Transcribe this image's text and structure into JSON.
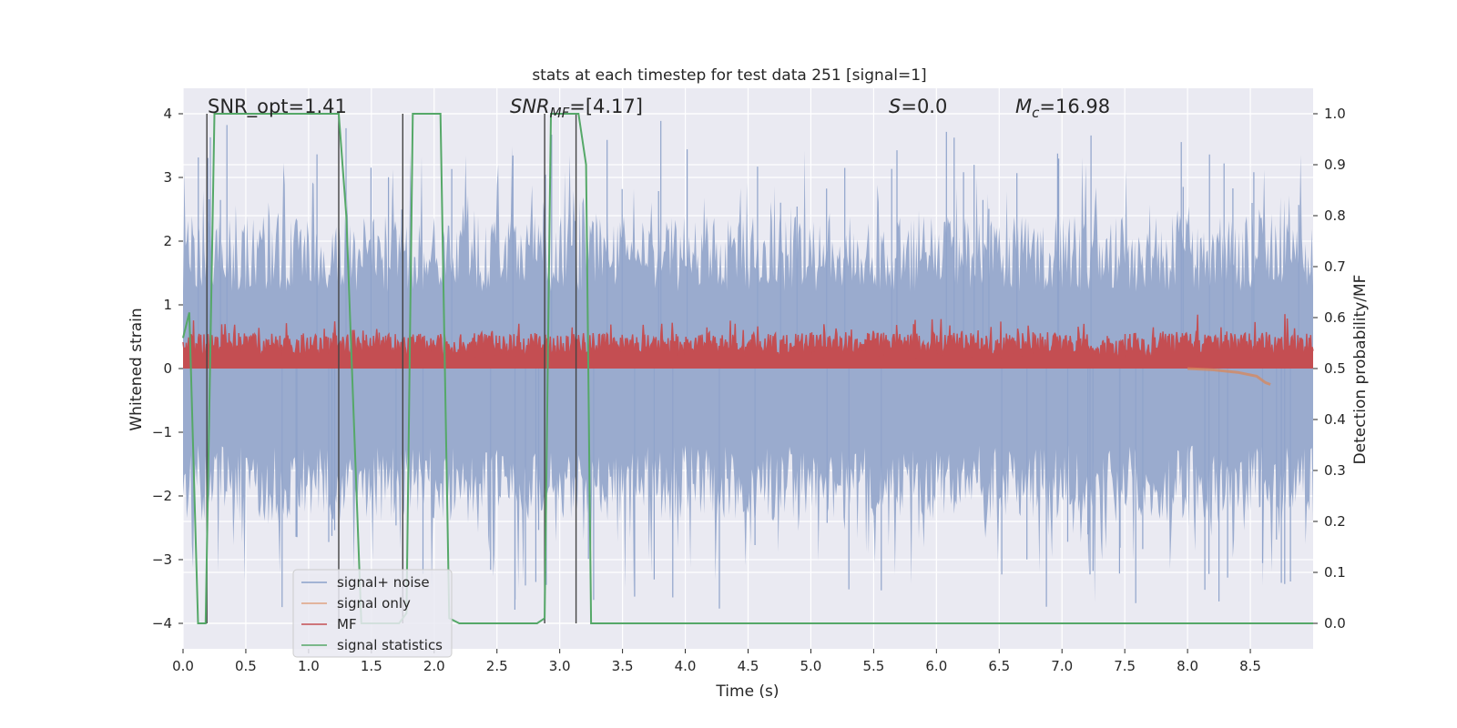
{
  "chart_data": {
    "type": "line",
    "title": "stats at each timestep for test data 251 [signal=1]",
    "xlabel": "Time (s)",
    "ylabel_left": "Whitened strain",
    "ylabel_right": "Detection probability/MF",
    "xlim": [
      0.0,
      9.0
    ],
    "ylim_left": [
      -4.4,
      4.4
    ],
    "ylim_right": [
      -0.05,
      1.05
    ],
    "x_ticks": [
      0.0,
      0.5,
      1.0,
      1.5,
      2.0,
      2.5,
      3.0,
      3.5,
      4.0,
      4.5,
      5.0,
      5.5,
      6.0,
      6.5,
      7.0,
      7.5,
      8.0,
      8.5
    ],
    "x_tick_labels": [
      "0.0",
      "0.5",
      "1.0",
      "1.5",
      "2.0",
      "2.5",
      "3.0",
      "3.5",
      "4.0",
      "4.5",
      "5.0",
      "5.5",
      "6.0",
      "6.5",
      "7.0",
      "7.5",
      "8.0",
      "8.5"
    ],
    "y_ticks_left": [
      -4,
      -3,
      -2,
      -1,
      0,
      1,
      2,
      3,
      4
    ],
    "y_tick_labels_left": [
      "−4",
      "−3",
      "−2",
      "−1",
      "0",
      "1",
      "2",
      "3",
      "4"
    ],
    "y_ticks_right": [
      0.0,
      0.1,
      0.2,
      0.3,
      0.4,
      0.5,
      0.6,
      0.7,
      0.8,
      0.9,
      1.0
    ],
    "y_tick_labels_right": [
      "0.0",
      "0.1",
      "0.2",
      "0.3",
      "0.4",
      "0.5",
      "0.6",
      "0.7",
      "0.8",
      "0.9",
      "1.0"
    ],
    "grid": true,
    "legend_position": "lower-left",
    "annotations": {
      "snr_opt": "SNR_opt=1.41",
      "snr_mf_main": "SNR",
      "snr_mf_sub": "MF",
      "snr_mf_value": "=[4.17]",
      "s_main": "S",
      "s_value": "=0.0",
      "mc_main": "M",
      "mc_sub": "c",
      "mc_value": "=16.98"
    },
    "series": [
      {
        "name": "signal+ noise",
        "color": "#4c72b0",
        "axis": "left",
        "description_levels": {
          "envelope_typical_upper": 2.5,
          "envelope_typical_lower": -2.5,
          "peak_max": 3.9,
          "peak_min": -3.8
        }
      },
      {
        "name": "signal only",
        "color": "#dd8452",
        "axis": "left",
        "points": [
          [
            8.0,
            0.0
          ],
          [
            8.2,
            -0.02
          ],
          [
            8.4,
            -0.06
          ],
          [
            8.55,
            -0.12
          ],
          [
            8.62,
            -0.22
          ],
          [
            8.66,
            -0.25
          ]
        ]
      },
      {
        "name": "MF",
        "color": "#c44e52",
        "axis": "right",
        "description_levels": {
          "baseline": 0.5,
          "typical_max": 0.6,
          "peak_max": 0.62
        }
      },
      {
        "name": "signal statistics",
        "color": "#55a868",
        "axis": "right",
        "points": [
          [
            0.0,
            0.56
          ],
          [
            0.05,
            0.61
          ],
          [
            0.12,
            0.0
          ],
          [
            0.18,
            0.0
          ],
          [
            0.25,
            1.0
          ],
          [
            1.24,
            1.0
          ],
          [
            1.3,
            0.8
          ],
          [
            1.42,
            0.0
          ],
          [
            1.72,
            0.0
          ],
          [
            1.78,
            0.02
          ],
          [
            1.83,
            1.0
          ],
          [
            2.05,
            1.0
          ],
          [
            2.12,
            0.01
          ],
          [
            2.2,
            0.0
          ],
          [
            2.82,
            0.0
          ],
          [
            2.88,
            0.01
          ],
          [
            2.93,
            1.0
          ],
          [
            3.15,
            1.0
          ],
          [
            3.21,
            0.9
          ],
          [
            3.25,
            0.0
          ],
          [
            9.0,
            0.0
          ]
        ]
      }
    ],
    "vertical_lines": [
      0.19,
      1.24,
      1.75,
      2.88,
      3.13
    ]
  }
}
